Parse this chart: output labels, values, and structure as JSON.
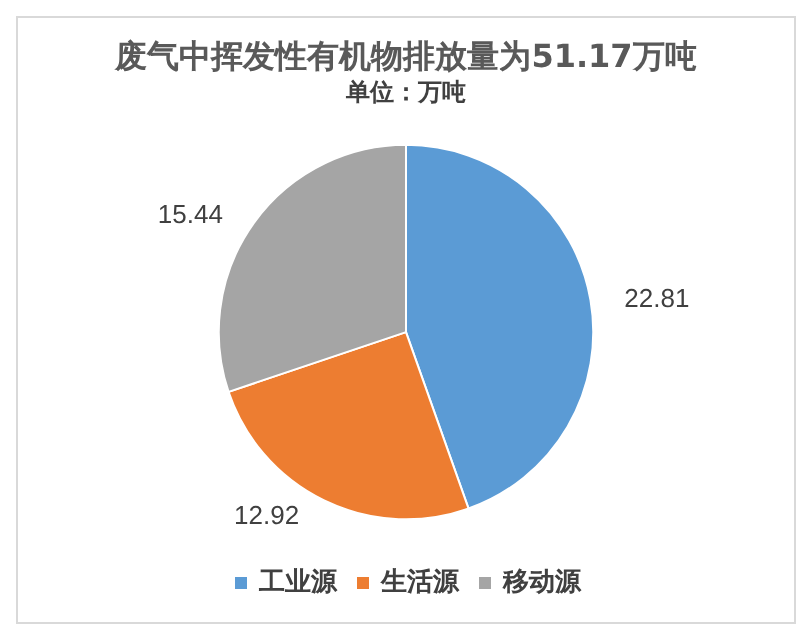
{
  "chart_data": {
    "type": "pie",
    "title": "废气中挥发性有机物排放量为51.17万吨",
    "subtitle": "单位：万吨",
    "categories": [
      "工业源",
      "生活源",
      "移动源"
    ],
    "values": [
      22.81,
      12.92,
      15.44
    ],
    "colors": [
      "#5b9bd5",
      "#ed7d31",
      "#a5a5a5"
    ],
    "data_labels": true,
    "legend": "bottom"
  }
}
